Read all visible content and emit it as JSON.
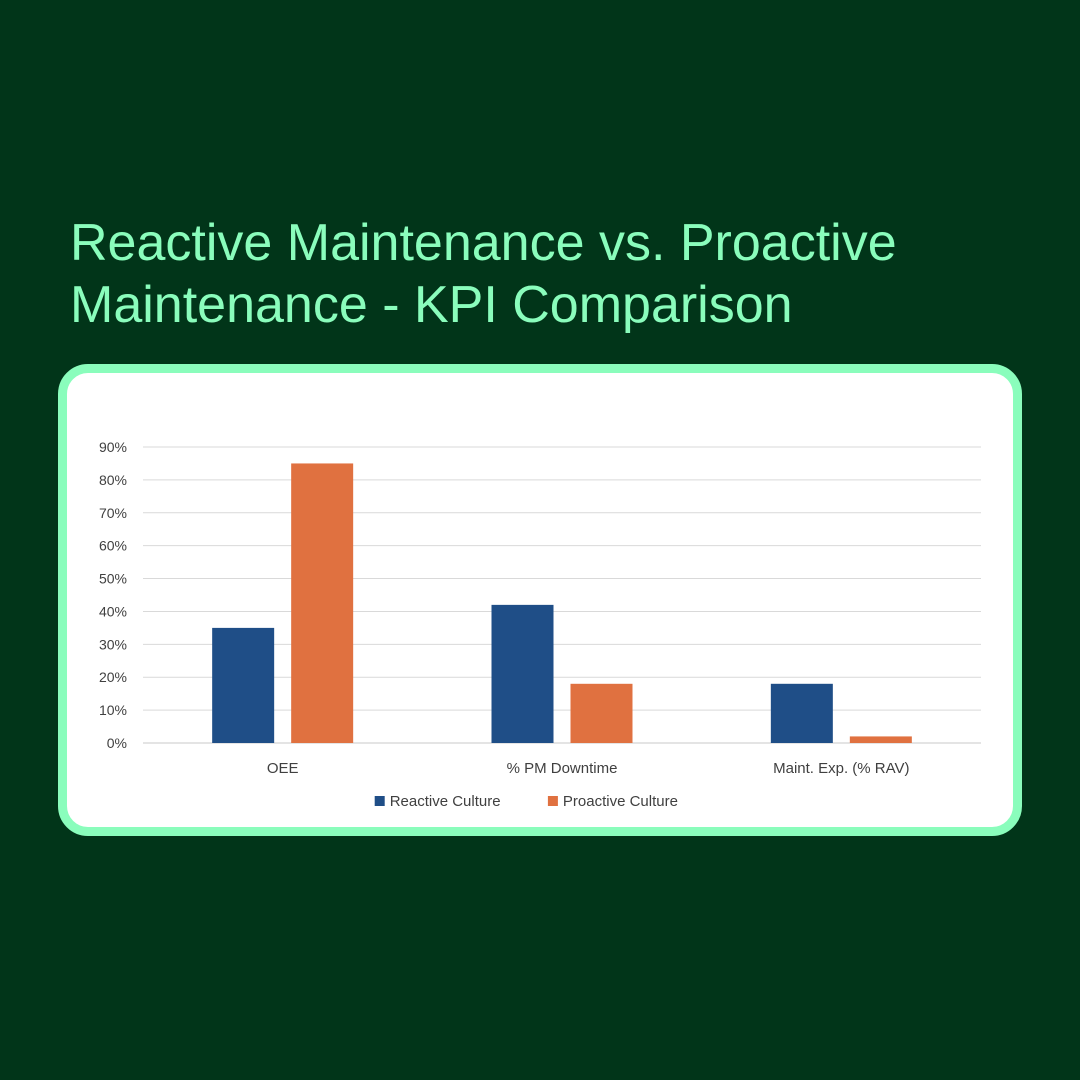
{
  "page": {
    "title_line1": "Reactive Maintenance vs. Proactive",
    "title_line2": "Maintenance - KPI Comparison",
    "colors": {
      "background": "#013519",
      "title": "#8afdbc",
      "card_border": "#8afdbc"
    }
  },
  "chart_data": {
    "type": "bar",
    "title": "",
    "xlabel": "",
    "ylabel": "",
    "categories": [
      "OEE",
      "% PM Downtime",
      "Maint. Exp. (% RAV)"
    ],
    "series": [
      {
        "name": "Reactive Culture",
        "values": [
          35,
          42,
          18
        ],
        "color": "#1f4e87"
      },
      {
        "name": "Proactive Culture",
        "values": [
          85,
          18,
          2
        ],
        "color": "#e07140"
      }
    ],
    "ylim": [
      0,
      90
    ],
    "yticks": [
      0,
      10,
      20,
      30,
      40,
      50,
      60,
      70,
      80,
      90
    ],
    "tick_suffix": "%",
    "grid": true,
    "legend_position": "bottom-center"
  }
}
